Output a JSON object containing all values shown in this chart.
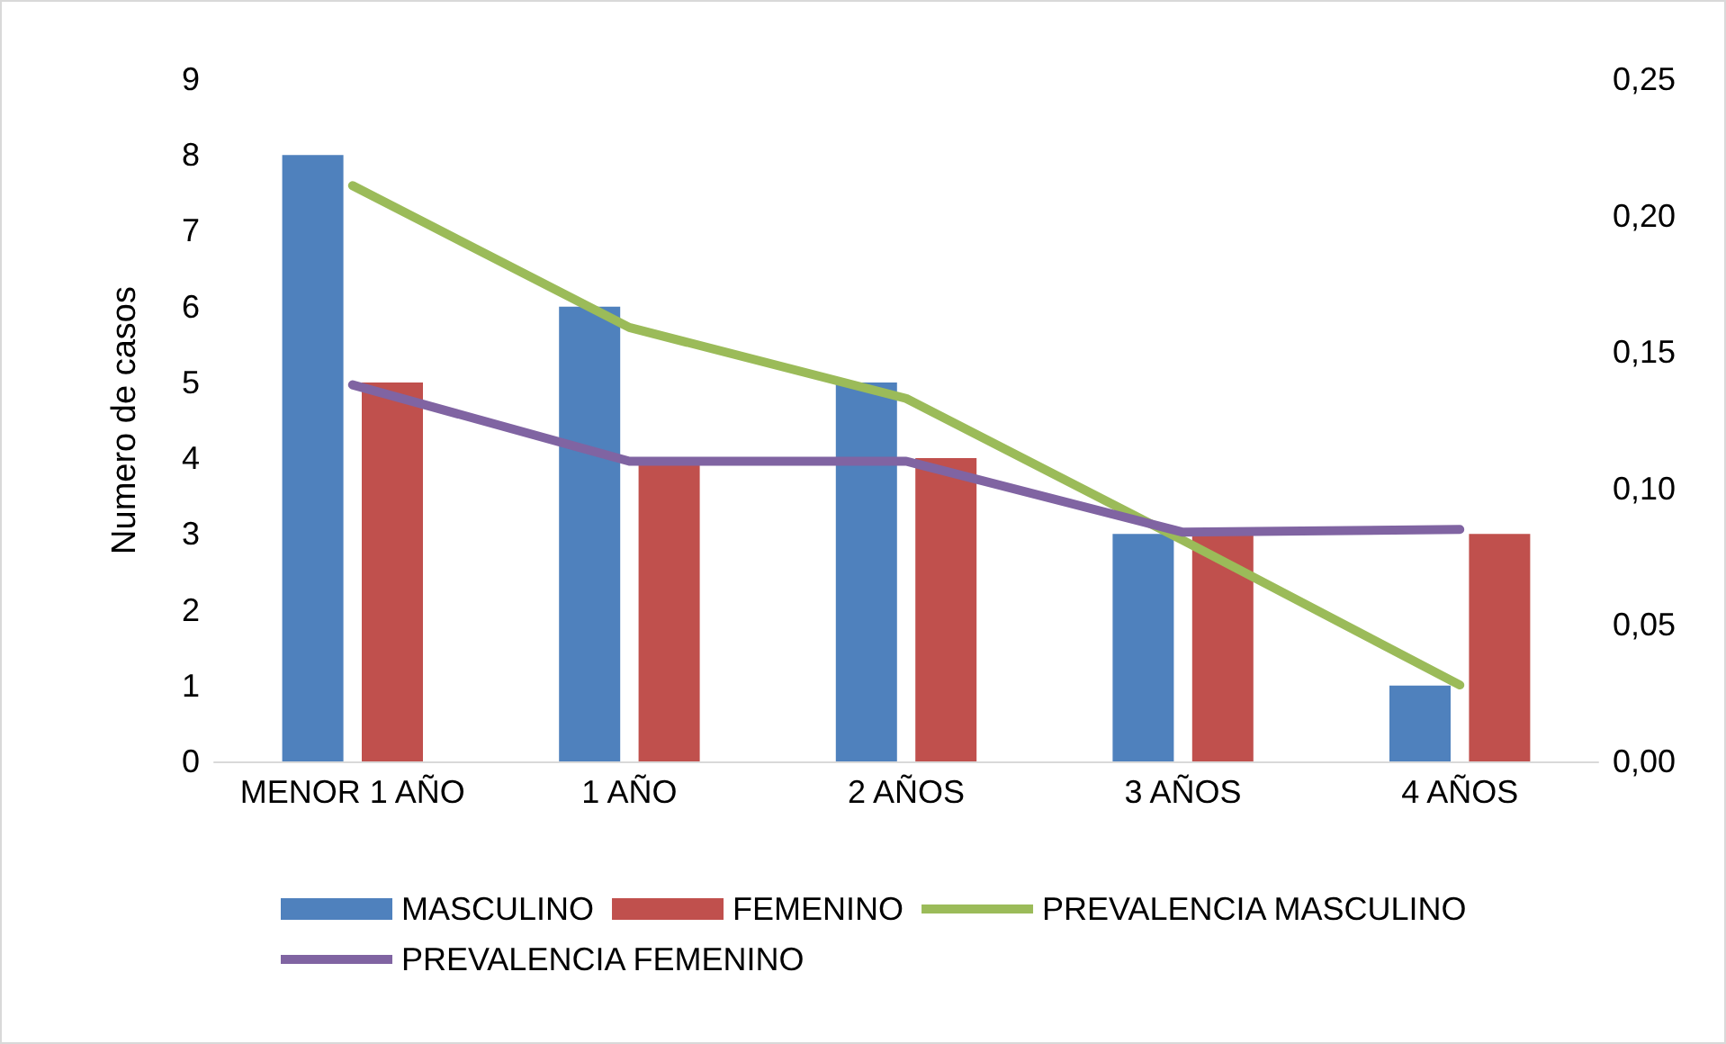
{
  "chart_data": {
    "type": "bar",
    "ylabel": "Numero de casos",
    "categories": [
      "MENOR 1 AÑO",
      "1 AÑO",
      "2 AÑOS",
      "3 AÑOS",
      "4 AÑOS"
    ],
    "series": [
      {
        "name": "MASCULINO",
        "color": "#4f81bd",
        "values": [
          8,
          6,
          5,
          3,
          1
        ]
      },
      {
        "name": "FEMENINO",
        "color": "#c0504d",
        "values": [
          5,
          4,
          4,
          3,
          3
        ]
      },
      {
        "name": "PREVALENCIA MASCULINO",
        "type": "line",
        "axis": "y2",
        "color": "#9bbb59",
        "values": [
          0.211,
          0.159,
          0.133,
          0.081,
          0.028
        ]
      },
      {
        "name": "PREVALENCIA FEMENINO",
        "type": "line",
        "axis": "y2",
        "color": "#8064a2",
        "values": [
          0.138,
          0.11,
          0.11,
          0.084,
          0.085
        ]
      }
    ],
    "ylim": [
      0,
      9
    ],
    "yticks": [
      0,
      1,
      2,
      3,
      4,
      5,
      6,
      7,
      8,
      9
    ],
    "y2lim": [
      0,
      0.25
    ],
    "y2ticks": [
      {
        "value": 0,
        "label": "0,00"
      },
      {
        "value": 0.05,
        "label": "0,05"
      },
      {
        "value": 0.1,
        "label": "0,10"
      },
      {
        "value": 0.15,
        "label": "0,15"
      },
      {
        "value": 0.2,
        "label": "0,20"
      },
      {
        "value": 0.25,
        "label": "0,25"
      }
    ],
    "grid": false,
    "legend": "bottom",
    "marker": "none",
    "line_style": "solid"
  }
}
